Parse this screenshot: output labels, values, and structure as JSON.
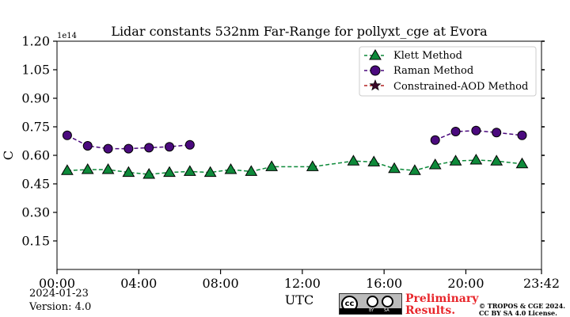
{
  "chart_data": {
    "type": "line",
    "title": "Lidar constants 532nm Far-Range for pollyxt_cge at Evora",
    "xlabel": "UTC",
    "ylabel": "C",
    "y_scale_label": "1e14",
    "xlim": [
      "00:00",
      "23:42"
    ],
    "ylim": [
      0.0,
      1.2
    ],
    "x_ticks": [
      "00:00",
      "04:00",
      "08:00",
      "12:00",
      "16:00",
      "20:00",
      "23:42"
    ],
    "y_ticks": [
      "0.15",
      "0.30",
      "0.45",
      "0.60",
      "0.75",
      "0.90",
      "1.05",
      "1.20"
    ],
    "legend_position": "top-right",
    "series": [
      {
        "name": "Klett Method",
        "color": "#0e8a3a",
        "marker": "triangle",
        "linestyle": "dashed",
        "points": [
          {
            "x": "00:30",
            "y": 0.52
          },
          {
            "x": "01:30",
            "y": 0.525
          },
          {
            "x": "02:30",
            "y": 0.525
          },
          {
            "x": "03:30",
            "y": 0.51
          },
          {
            "x": "04:30",
            "y": 0.5
          },
          {
            "x": "05:30",
            "y": 0.51
          },
          {
            "x": "06:30",
            "y": 0.515
          },
          {
            "x": "07:30",
            "y": 0.51
          },
          {
            "x": "08:30",
            "y": 0.525
          },
          {
            "x": "09:30",
            "y": 0.515
          },
          {
            "x": "10:30",
            "y": 0.54
          },
          {
            "x": "12:30",
            "y": 0.54
          },
          {
            "x": "14:30",
            "y": 0.57
          },
          {
            "x": "15:30",
            "y": 0.565
          },
          {
            "x": "16:30",
            "y": 0.53
          },
          {
            "x": "17:30",
            "y": 0.52
          },
          {
            "x": "18:30",
            "y": 0.55
          },
          {
            "x": "19:30",
            "y": 0.57
          },
          {
            "x": "20:30",
            "y": 0.575
          },
          {
            "x": "21:30",
            "y": 0.57
          },
          {
            "x": "22:45",
            "y": 0.555
          }
        ]
      },
      {
        "name": "Raman Method",
        "color": "#4b0a7e",
        "marker": "circle",
        "linestyle": "dashed",
        "segments": [
          [
            {
              "x": "00:30",
              "y": 0.705
            },
            {
              "x": "01:30",
              "y": 0.65
            },
            {
              "x": "02:30",
              "y": 0.635
            },
            {
              "x": "03:30",
              "y": 0.635
            },
            {
              "x": "04:30",
              "y": 0.64
            },
            {
              "x": "05:30",
              "y": 0.645
            },
            {
              "x": "06:30",
              "y": 0.655
            }
          ],
          [
            {
              "x": "18:30",
              "y": 0.68
            },
            {
              "x": "19:30",
              "y": 0.725
            },
            {
              "x": "20:30",
              "y": 0.73
            },
            {
              "x": "21:30",
              "y": 0.72
            },
            {
              "x": "22:45",
              "y": 0.705
            }
          ]
        ]
      },
      {
        "name": "Constrained-AOD Method",
        "color": "#b22222",
        "marker": "star",
        "linestyle": "dashed",
        "points": []
      }
    ]
  },
  "footer": {
    "date": "2024-01-23",
    "version": "Version: 4.0",
    "preliminary_line1": "Preliminary",
    "preliminary_line2": "Results.",
    "copyright_line1": "© TROPOS & CGE 2024.",
    "copyright_line2": "CC BY SA 4.0 License.",
    "license_badge_text": "cc",
    "license_badge_by": "BY",
    "license_badge_sa": "SA"
  },
  "colors": {
    "preliminary": "#e8262b",
    "axis": "#000000"
  }
}
